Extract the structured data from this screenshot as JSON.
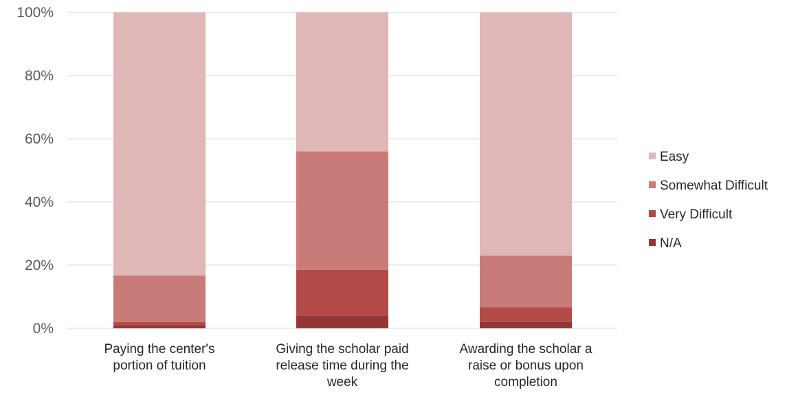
{
  "chart_data": {
    "type": "bar",
    "stacked": true,
    "categories": [
      [
        "Paying the center's",
        "portion of tuition"
      ],
      [
        "Giving the scholar paid",
        "release time during the",
        "week"
      ],
      [
        "Awarding the scholar a",
        "raise or bonus upon",
        "completion"
      ]
    ],
    "series": [
      {
        "name": "N/A",
        "color": "#943634",
        "values": [
          1,
          4,
          2
        ]
      },
      {
        "name": "Very Difficult",
        "color": "#b24a48",
        "values": [
          1,
          14.5,
          4.7
        ]
      },
      {
        "name": "Somewhat Difficult",
        "color": "#c97b79",
        "values": [
          14.7,
          37.5,
          16.3
        ]
      },
      {
        "name": "Easy",
        "color": "#dfb7b7",
        "values": [
          83.3,
          44,
          77
        ]
      }
    ],
    "ylim": [
      0,
      100
    ],
    "yticks": [
      "0%",
      "20%",
      "40%",
      "60%",
      "80%",
      "100%"
    ],
    "grid": true,
    "legend_position": "right"
  }
}
